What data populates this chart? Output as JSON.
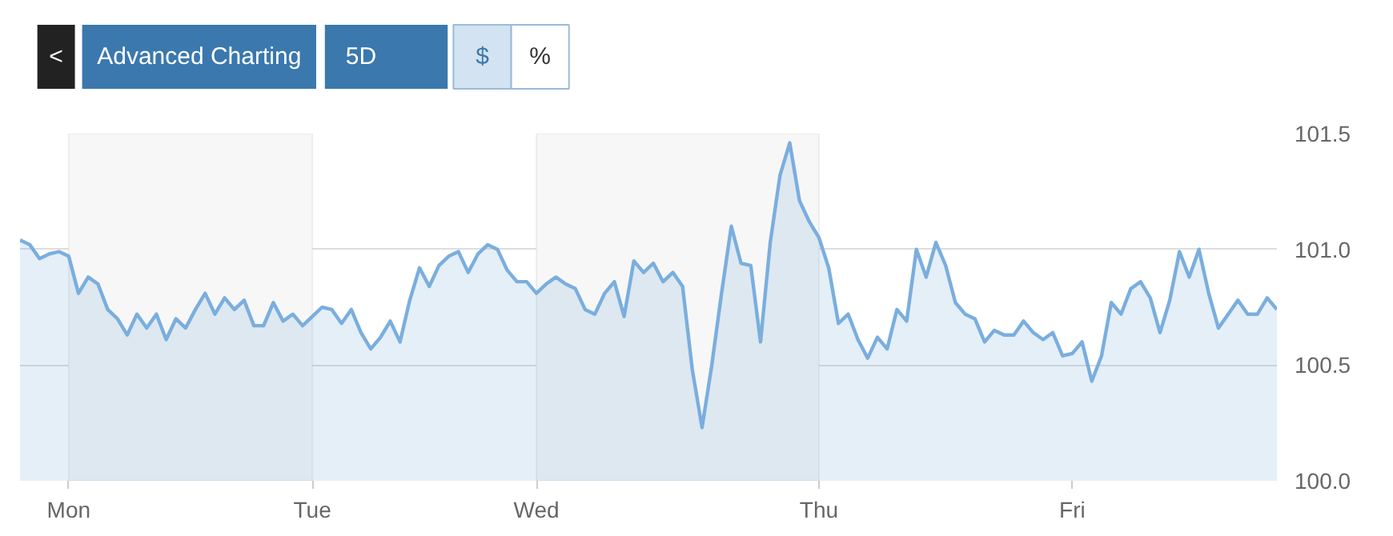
{
  "chart_data": {
    "type": "area",
    "annotations": [
      "<",
      "Advanced Charting",
      "5D",
      "$",
      "%"
    ],
    "categories": [
      null,
      null,
      null,
      null,
      null,
      "Mon",
      null,
      null,
      null,
      null,
      null,
      null,
      null,
      null,
      null,
      null,
      null,
      null,
      null,
      null,
      null,
      null,
      null,
      null,
      null,
      null,
      null,
      null,
      null,
      null,
      "Tue",
      null,
      null,
      null,
      null,
      null,
      null,
      null,
      null,
      null,
      null,
      null,
      null,
      null,
      null,
      null,
      null,
      null,
      null,
      null,
      null,
      null,
      null,
      "Wed",
      null,
      null,
      null,
      null,
      null,
      null,
      null,
      null,
      null,
      null,
      null,
      null,
      null,
      null,
      null,
      null,
      null,
      null,
      null,
      null,
      null,
      null,
      null,
      null,
      null,
      null,
      null,
      null,
      "Thu",
      null,
      null,
      null,
      null,
      null,
      null,
      null,
      null,
      null,
      null,
      null,
      null,
      null,
      null,
      null,
      null,
      null,
      null,
      null,
      null,
      null,
      null,
      null,
      null,
      null,
      "Fri",
      null,
      null,
      null,
      null,
      null,
      null,
      null,
      null,
      null,
      null,
      null,
      null,
      null,
      null,
      null,
      null,
      null,
      null,
      null,
      null,
      null
    ],
    "series": [
      {
        "color": "#7aaede",
        "values": [
          101.04,
          101.02,
          100.96,
          100.98,
          100.99,
          100.97,
          100.81,
          100.88,
          100.85,
          100.74,
          100.7,
          100.63,
          100.72,
          100.66,
          100.72,
          100.61,
          100.7,
          100.66,
          100.74,
          100.81,
          100.72,
          100.79,
          100.74,
          100.78,
          100.67,
          100.67,
          100.77,
          100.69,
          100.72,
          100.67,
          100.71,
          100.75,
          100.74,
          100.68,
          100.74,
          100.64,
          100.57,
          100.62,
          100.69,
          100.6,
          100.78,
          100.92,
          100.84,
          100.93,
          100.97,
          100.99,
          100.9,
          100.98,
          101.02,
          101.0,
          100.91,
          100.86,
          100.86,
          100.81,
          100.85,
          100.88,
          100.85,
          100.83,
          100.74,
          100.72,
          100.81,
          100.86,
          100.71,
          100.95,
          100.9,
          100.94,
          100.86,
          100.9,
          100.84,
          100.48,
          100.23,
          100.5,
          100.81,
          101.1,
          100.94,
          100.93,
          100.6,
          101.03,
          101.32,
          101.46,
          101.21,
          101.12,
          101.05,
          100.92,
          100.68,
          100.72,
          100.61,
          100.53,
          100.62,
          100.57,
          100.74,
          100.69,
          101.0,
          100.88,
          101.03,
          100.93,
          100.77,
          100.72,
          100.7,
          100.6,
          100.65,
          100.63,
          100.63,
          100.69,
          100.64,
          100.61,
          100.64,
          100.54,
          100.55,
          100.6,
          100.43,
          100.54,
          100.77,
          100.72,
          100.83,
          100.86,
          100.79,
          100.64,
          100.78,
          100.99,
          100.88,
          101.0,
          100.81,
          100.66,
          100.72,
          100.78,
          100.72,
          100.72,
          100.79,
          100.74
        ]
      }
    ],
    "ylim": [
      100.0,
      101.5
    ],
    "yticks": [
      {
        "value": 100.0,
        "label": "100.0"
      },
      {
        "value": 100.5,
        "label": "100.5"
      },
      {
        "value": 101.0,
        "label": "101.0"
      },
      {
        "value": 101.5,
        "label": "101.5"
      }
    ],
    "bands": [
      {
        "axis": "x",
        "from": "Mon",
        "to": "Tue",
        "color": "#f7f7f7"
      },
      {
        "axis": "x",
        "from": "Wed",
        "to": "Thu",
        "color": "#f7f7f7"
      }
    ],
    "grid": "y"
  }
}
